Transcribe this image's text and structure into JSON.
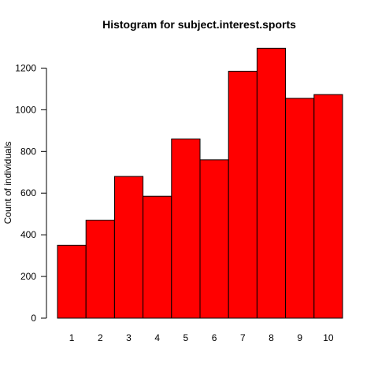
{
  "chart_data": {
    "type": "bar",
    "title": "Histogram for subject.interest.sports",
    "xlabel": "",
    "ylabel": "Count of individuals",
    "categories": [
      "1",
      "2",
      "3",
      "4",
      "5",
      "6",
      "7",
      "8",
      "9",
      "10"
    ],
    "values": [
      350,
      470,
      680,
      585,
      860,
      760,
      1185,
      1295,
      1055,
      1073
    ],
    "ylim": [
      0,
      1300
    ],
    "yticks": [
      0,
      200,
      400,
      600,
      800,
      1000,
      1200
    ],
    "bar_color": "#ff0000",
    "border_color": "#000000",
    "grid": false,
    "legend": "none"
  }
}
